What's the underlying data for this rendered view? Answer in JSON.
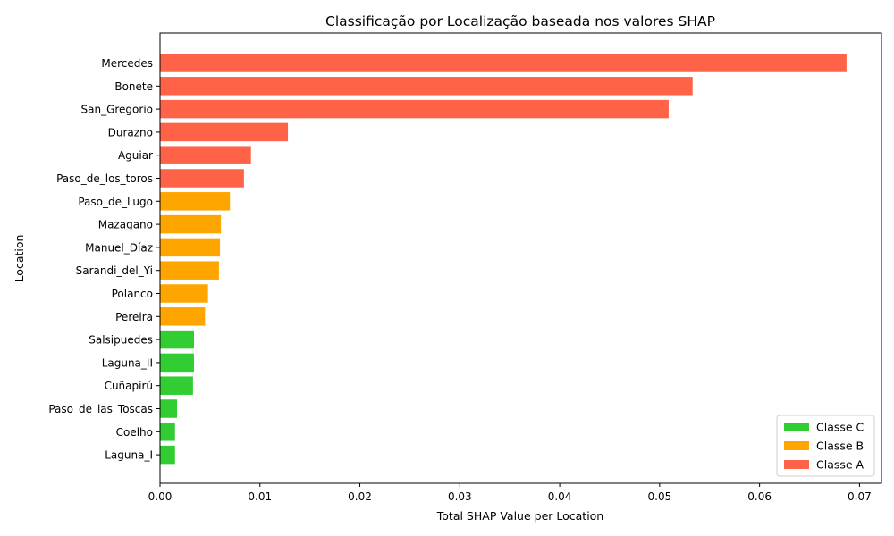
{
  "chart_data": {
    "type": "bar",
    "orientation": "horizontal",
    "title": "Classificação por Localização baseada nos valores SHAP",
    "xlabel": "Total SHAP Value per Location",
    "ylabel": "Location",
    "xlim": [
      0,
      0.0722
    ],
    "xticks": [
      0.0,
      0.01,
      0.02,
      0.03,
      0.04,
      0.05,
      0.06,
      0.07
    ],
    "xtick_labels": [
      "0.00",
      "0.01",
      "0.02",
      "0.03",
      "0.04",
      "0.05",
      "0.06",
      "0.07"
    ],
    "grid": false,
    "legend_position": "lower-right",
    "classes": [
      {
        "name": "Classe C",
        "color": "#32cd32"
      },
      {
        "name": "Classe B",
        "color": "#ffa500"
      },
      {
        "name": "Classe A",
        "color": "#ff6347"
      }
    ],
    "bars": [
      {
        "label": "Mercedes",
        "value": 0.0687,
        "class": "Classe A"
      },
      {
        "label": "Bonete",
        "value": 0.0533,
        "class": "Classe A"
      },
      {
        "label": "San_Gregorio",
        "value": 0.0509,
        "class": "Classe A"
      },
      {
        "label": "Durazno",
        "value": 0.0128,
        "class": "Classe A"
      },
      {
        "label": "Aguiar",
        "value": 0.0091,
        "class": "Classe A"
      },
      {
        "label": "Paso_de_los_toros",
        "value": 0.0084,
        "class": "Classe A"
      },
      {
        "label": "Paso_de_Lugo",
        "value": 0.007,
        "class": "Classe B"
      },
      {
        "label": "Mazagano",
        "value": 0.0061,
        "class": "Classe B"
      },
      {
        "label": "Manuel_Díaz",
        "value": 0.006,
        "class": "Classe B"
      },
      {
        "label": "Sarandi_del_Yi",
        "value": 0.0059,
        "class": "Classe B"
      },
      {
        "label": "Polanco",
        "value": 0.0048,
        "class": "Classe B"
      },
      {
        "label": "Pereira",
        "value": 0.0045,
        "class": "Classe B"
      },
      {
        "label": "Salsipuedes",
        "value": 0.0034,
        "class": "Classe C"
      },
      {
        "label": "Laguna_II",
        "value": 0.0034,
        "class": "Classe C"
      },
      {
        "label": "Cuñapirú",
        "value": 0.0033,
        "class": "Classe C"
      },
      {
        "label": "Paso_de_las_Toscas",
        "value": 0.0017,
        "class": "Classe C"
      },
      {
        "label": "Coelho",
        "value": 0.0015,
        "class": "Classe C"
      },
      {
        "label": "Laguna_I",
        "value": 0.0015,
        "class": "Classe C"
      }
    ]
  }
}
